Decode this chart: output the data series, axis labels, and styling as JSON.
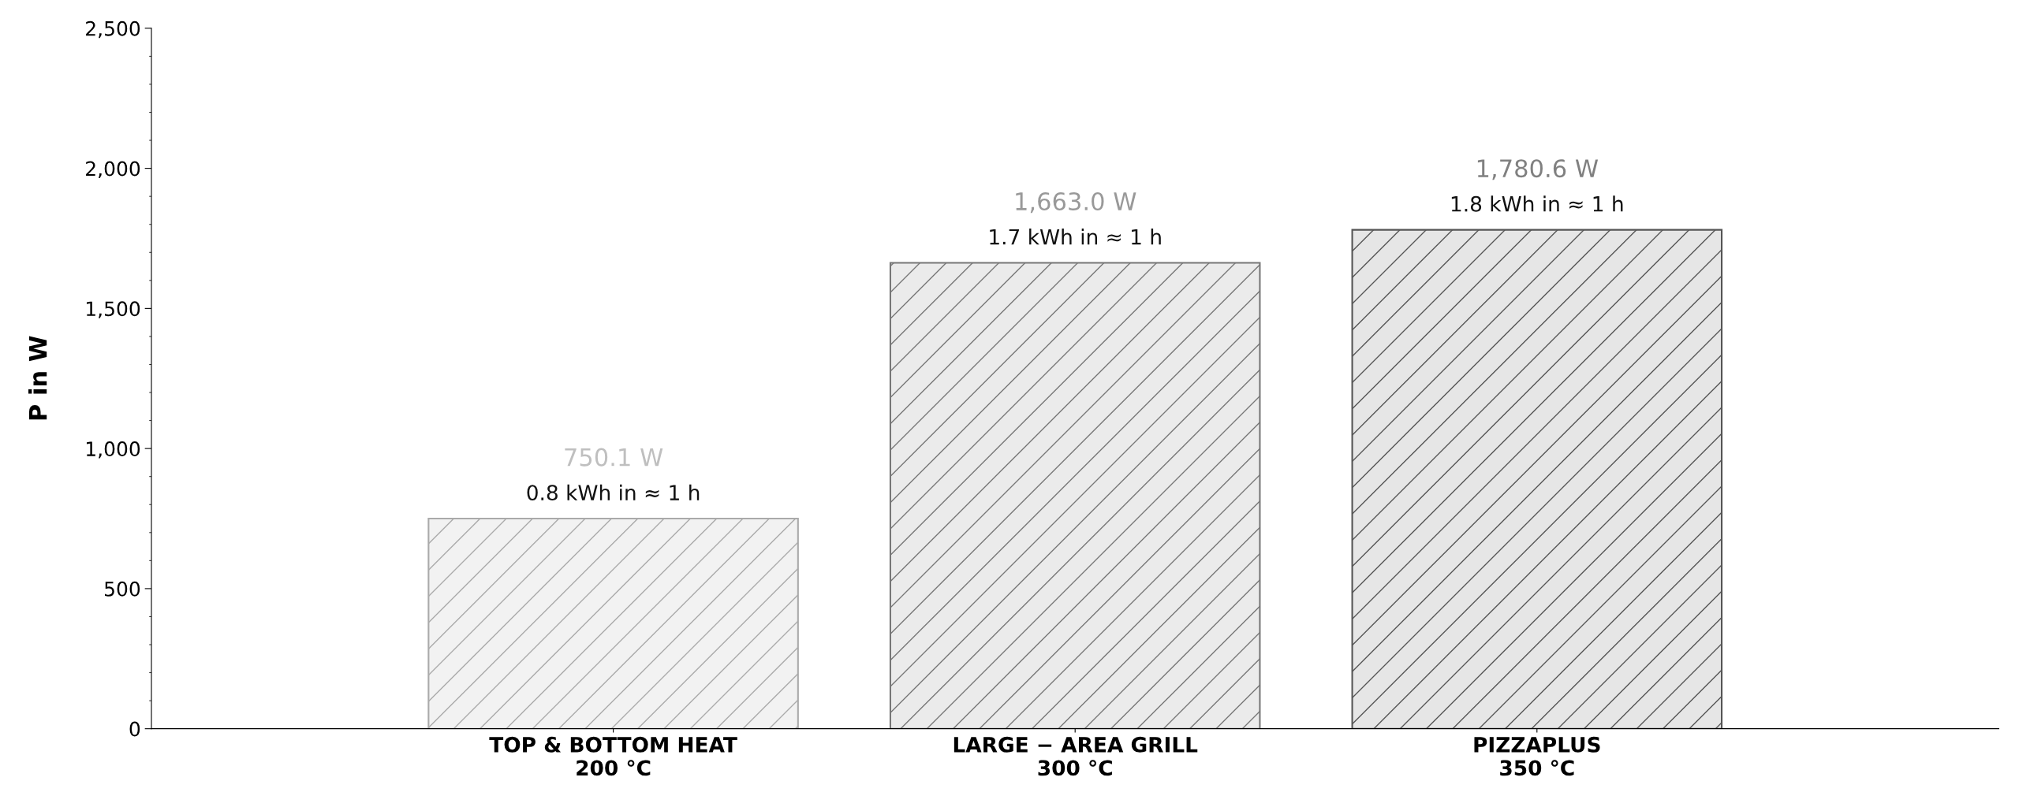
{
  "chart_data": {
    "type": "bar",
    "categories": [
      "TOP & BOTTOM HEAT\n200 °C",
      "LARGE − AREA GRILL\n300 °C",
      "PIZZAPLUS\n350 °C"
    ],
    "values": [
      750.1,
      1663.0,
      1780.6
    ],
    "colors": [
      "#aaaaaa",
      "#777777",
      "#555555"
    ],
    "value_labels": [
      "750.1 W",
      "1,663.0 W",
      "1,780.6 W"
    ],
    "annotations": [
      "0.8 kWh in ≈ 1 h",
      "1.7 kWh in ≈ 1 h",
      "1.8 kWh in ≈ 1 h"
    ],
    "ylabel": "P in W",
    "ylim": [
      0,
      2500
    ],
    "yticks": [
      0,
      500,
      {
        "value": 1000,
        "label": "1,000"
      },
      {
        "value": 1500,
        "label": "1,500"
      },
      {
        "value": 2000,
        "label": "2,000"
      },
      {
        "value": 2500,
        "label": "2,500"
      }
    ],
    "grid": false,
    "legend": false
  }
}
